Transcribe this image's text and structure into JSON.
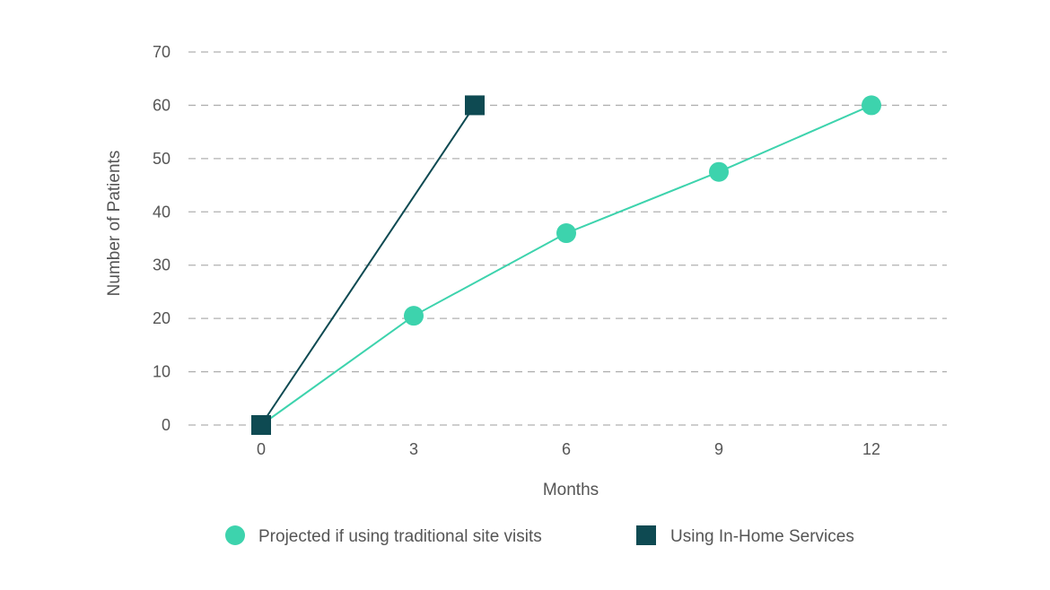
{
  "chart_data": {
    "type": "line",
    "title": "",
    "xlabel": "Months",
    "ylabel": "Number of Patients",
    "xlim": [
      -2.5,
      12.3
    ],
    "ylim": [
      0,
      70
    ],
    "xticks": [
      0,
      3,
      6,
      9,
      12
    ],
    "yticks": [
      0,
      10,
      20,
      30,
      40,
      50,
      60,
      70
    ],
    "grid": "horizontal-dashed",
    "legend_position": "bottom",
    "series": [
      {
        "name": "Projected if using traditional site visits",
        "color": "#3dd3ad",
        "marker": "circle",
        "points": [
          {
            "x": 0,
            "y": 0
          },
          {
            "x": 3,
            "y": 20.5
          },
          {
            "x": 6,
            "y": 36
          },
          {
            "x": 9,
            "y": 47.5
          },
          {
            "x": 12,
            "y": 60
          }
        ]
      },
      {
        "name": "Using In-Home Services",
        "color": "#0e4a52",
        "marker": "square",
        "points": [
          {
            "x": 0,
            "y": 0
          },
          {
            "x": 4.2,
            "y": 60
          }
        ]
      }
    ]
  }
}
